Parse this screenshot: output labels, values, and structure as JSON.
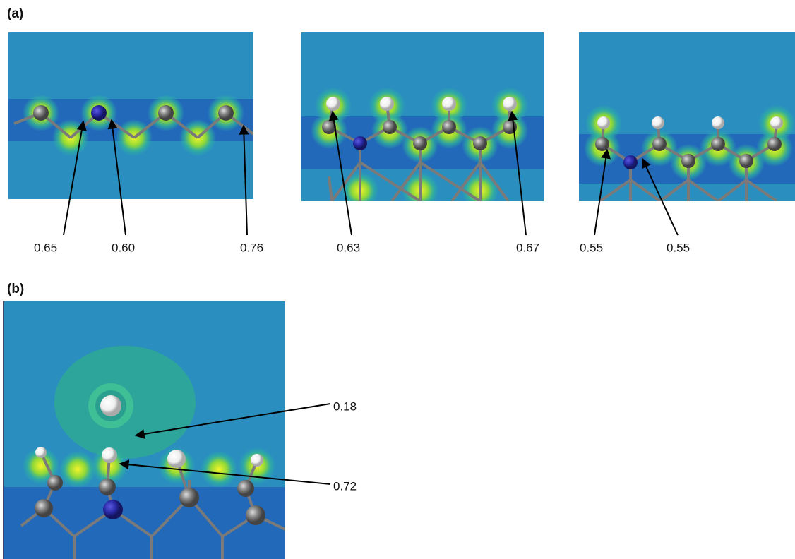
{
  "figure": {
    "panel_a": {
      "label": "(a)",
      "annotations": [
        "0.65",
        "0.60",
        "0.76",
        "0.63",
        "0.67",
        "0.55",
        "0.55"
      ]
    },
    "panel_b": {
      "label": "(b)",
      "annotations": [
        "0.18",
        "0.72"
      ]
    }
  }
}
